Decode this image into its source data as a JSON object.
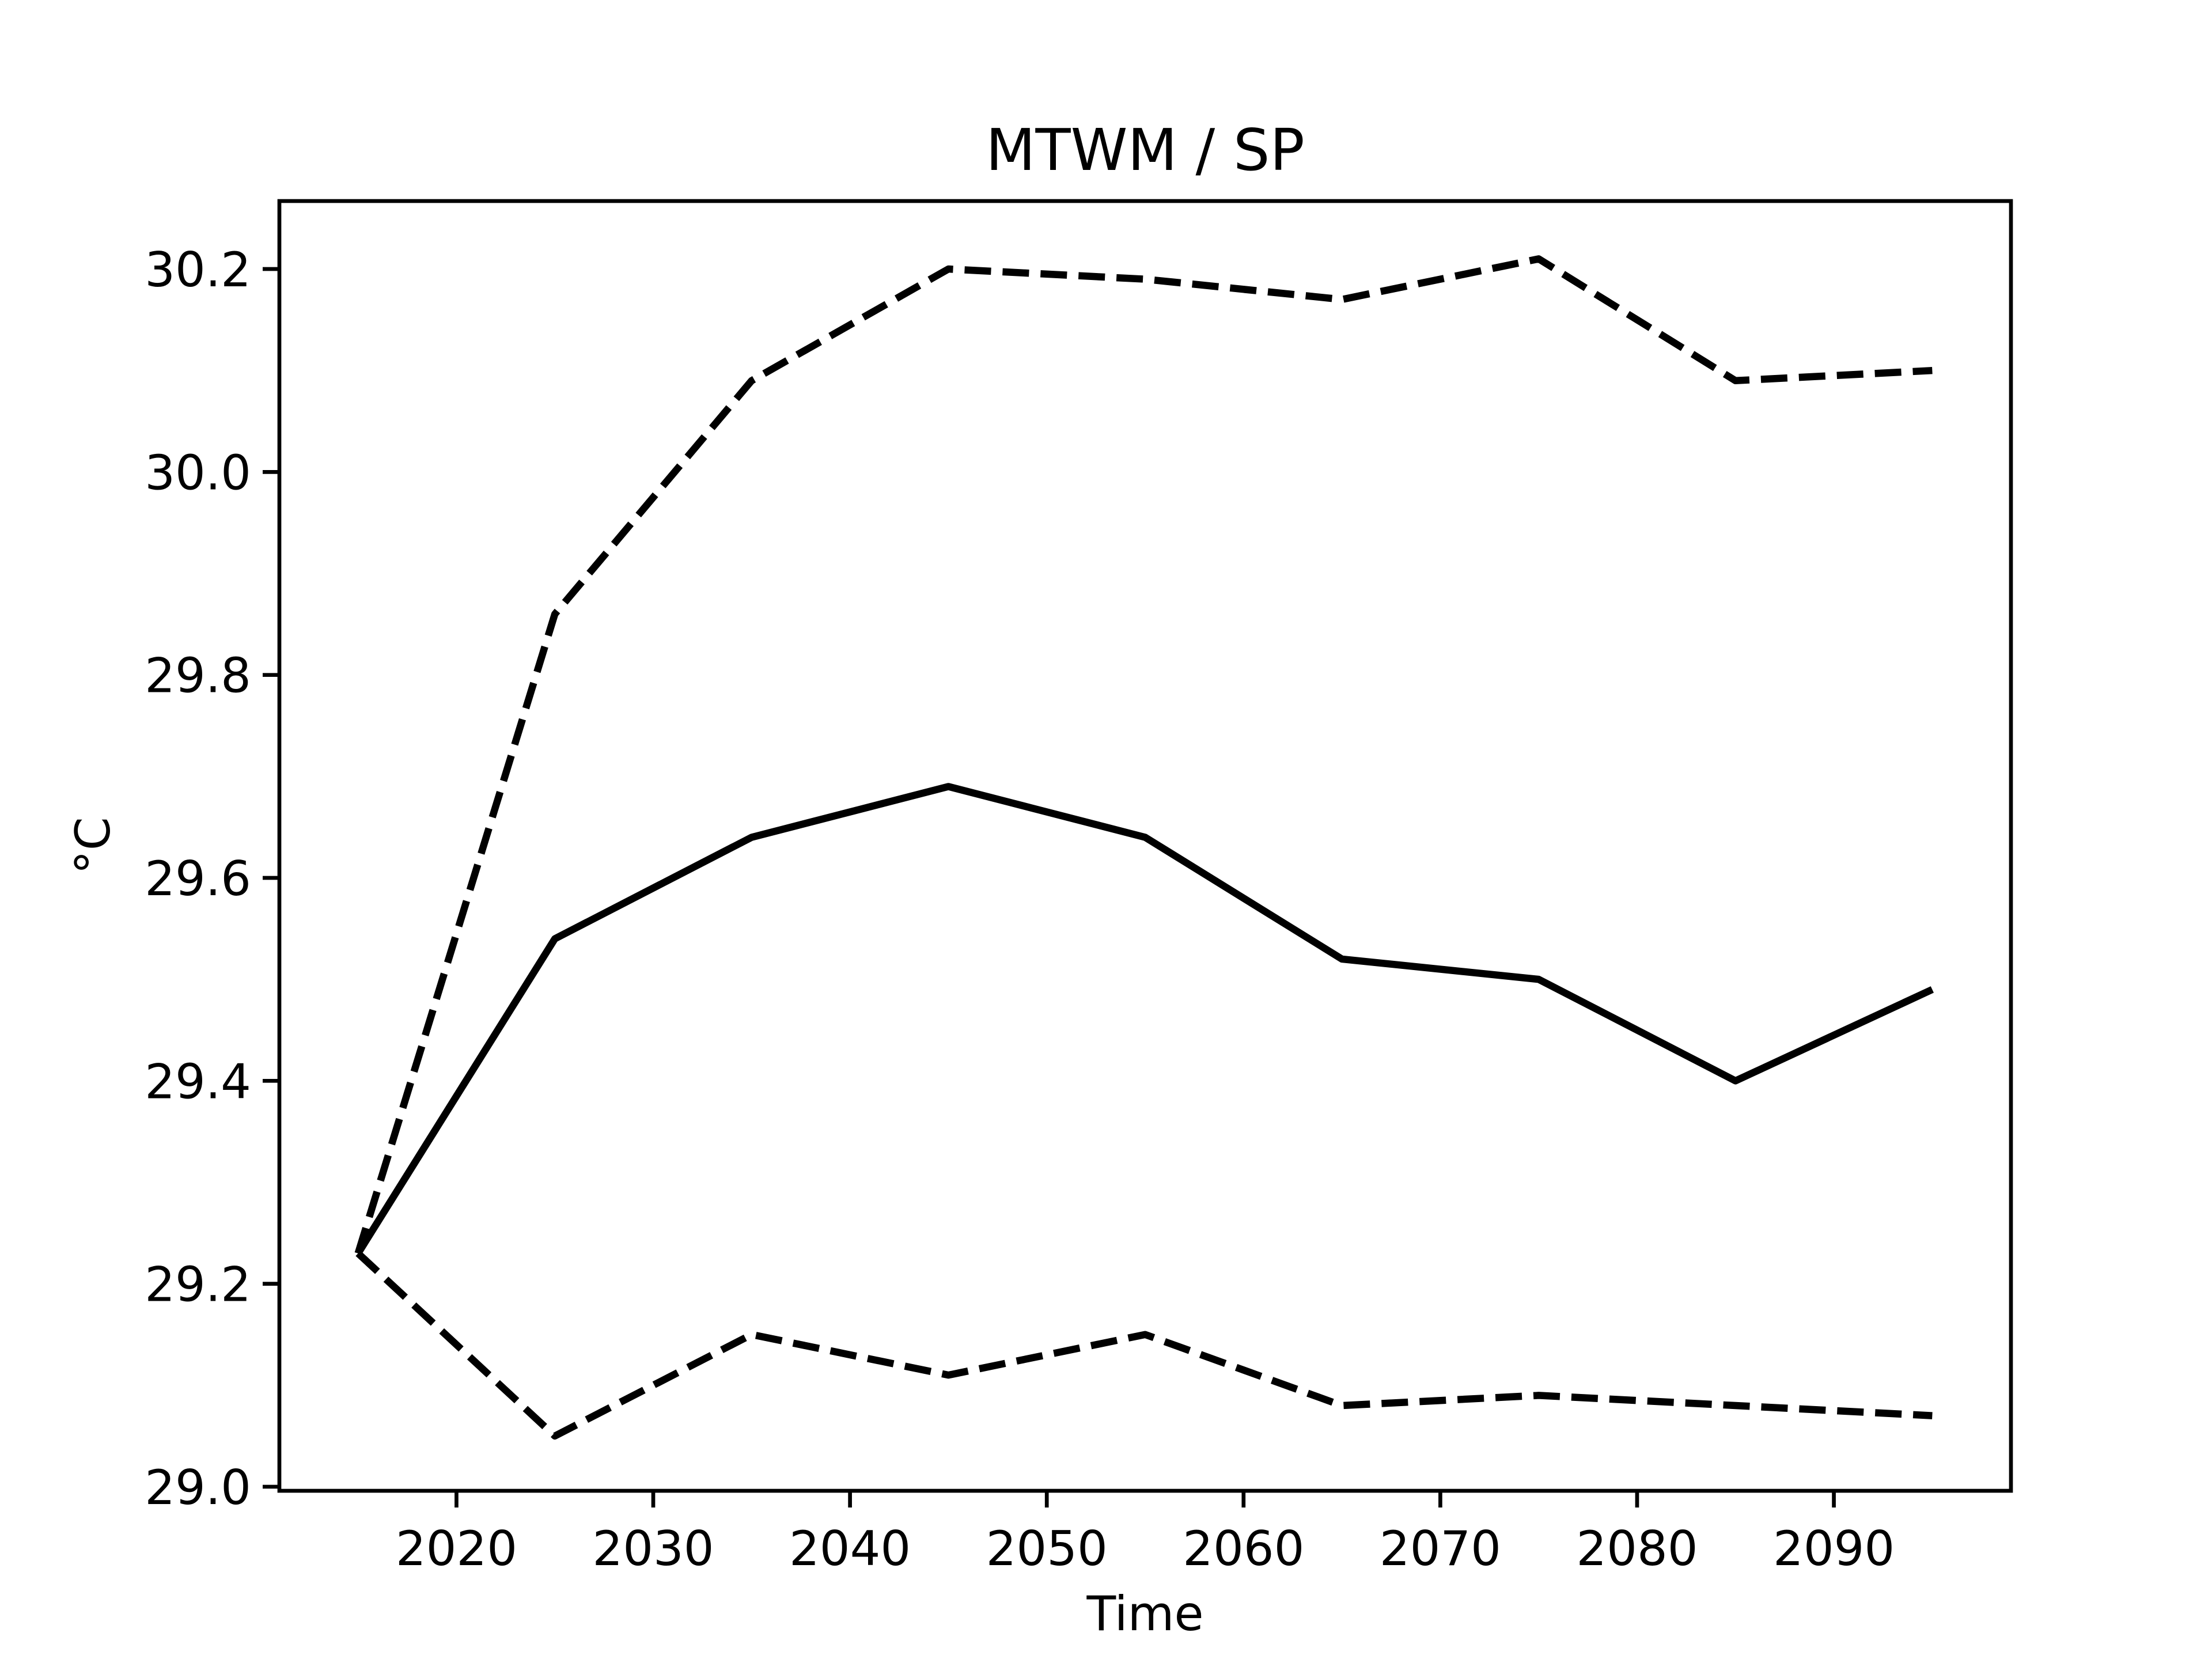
{
  "chart_data": {
    "type": "line",
    "title": "MTWM / SP",
    "xlabel": "Time",
    "ylabel": "°C",
    "x": [
      2015,
      2025,
      2035,
      2045,
      2055,
      2065,
      2075,
      2085,
      2095
    ],
    "series": [
      {
        "color": "#000000",
        "dashed": false,
        "values": [
          29.23,
          29.54,
          29.64,
          29.69,
          29.64,
          29.52,
          29.5,
          29.4,
          29.49
        ]
      },
      {
        "color": "#000000",
        "dashed": true,
        "values": [
          29.23,
          29.86,
          30.09,
          30.2,
          30.19,
          30.17,
          30.21,
          30.09,
          30.1
        ]
      },
      {
        "color": "#000000",
        "dashed": true,
        "values": [
          29.23,
          29.05,
          29.15,
          29.11,
          29.15,
          29.08,
          29.09,
          29.08,
          29.07
        ]
      }
    ],
    "xlim": [
      2011,
      2099
    ],
    "ylim": [
      28.996,
      30.267
    ],
    "xticks": [
      2020,
      2030,
      2040,
      2050,
      2060,
      2070,
      2080,
      2090
    ],
    "yticks": [
      {
        "value": 29.0,
        "label": "29.0"
      },
      29.2,
      29.4,
      29.6,
      29.8,
      {
        "value": 30.0,
        "label": "30.0"
      },
      30.2
    ],
    "grid": false
  }
}
